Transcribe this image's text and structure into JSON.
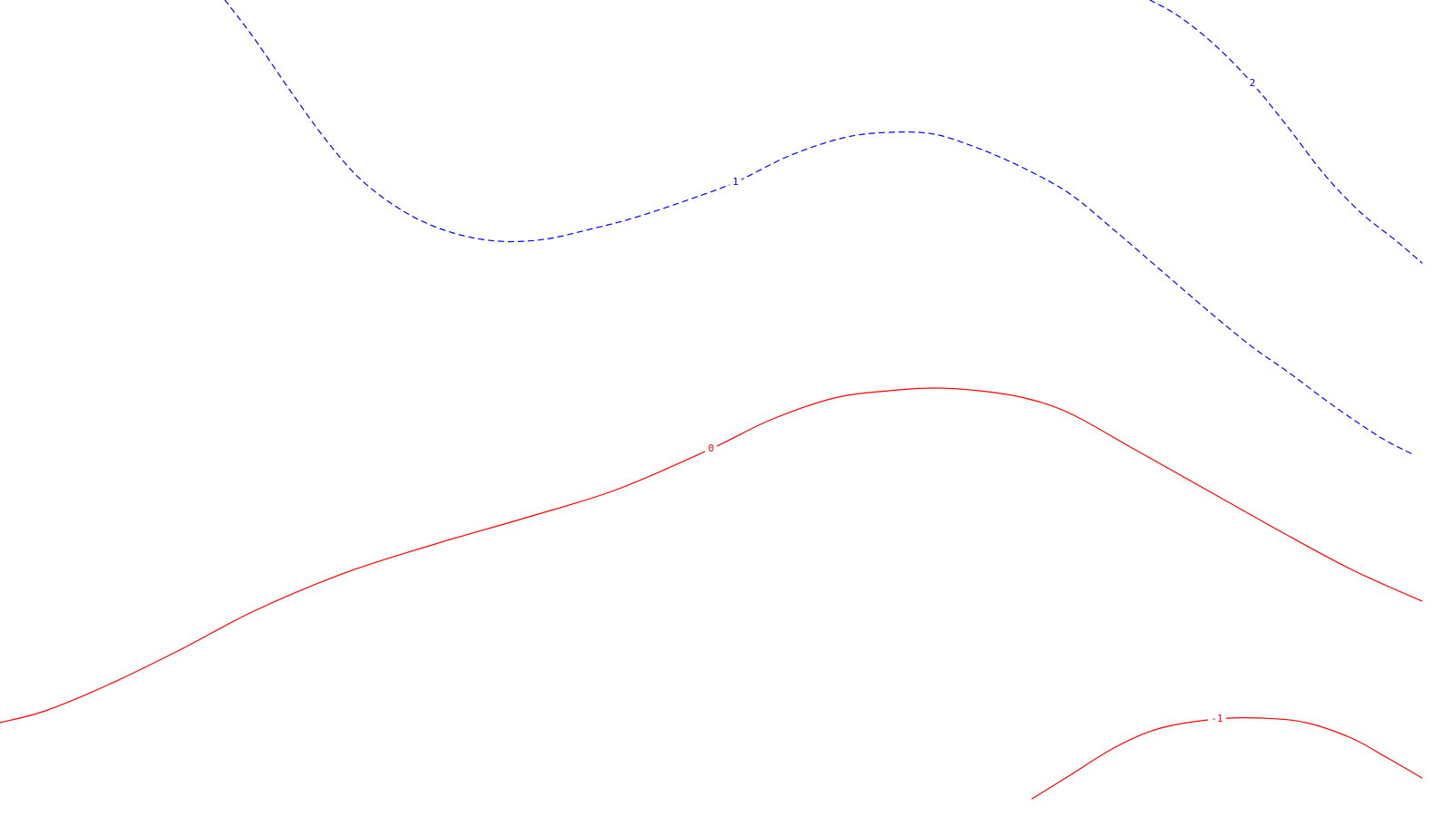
{
  "chart_data": {
    "type": "contour",
    "title": "",
    "xlabel": "",
    "ylabel": "",
    "grid": false,
    "legend": "none",
    "colors": {
      "positive": "#0000ff",
      "zero": "#ff0000",
      "negative": "#ff0000",
      "background": "#ffffff"
    },
    "series": [
      {
        "level": "2",
        "style": "dashed",
        "color": "#0000ff",
        "x": [
          1268,
          1300,
          1340,
          1381,
          1420,
          1460,
          1500,
          1540,
          1568
        ],
        "y": [
          0,
          18,
          50,
          92,
          140,
          192,
          234,
          266,
          290
        ],
        "label_index": 3
      },
      {
        "level": "1",
        "style": "dashed",
        "color": "#0000ff",
        "x": [
          248,
          280,
          320,
          360,
          400,
          450,
          500,
          550,
          600,
          650,
          700,
          760,
          811,
          870,
          930,
          980,
          1030,
          1080,
          1130,
          1180,
          1230,
          1280,
          1330,
          1380,
          1420,
          1460,
          1500,
          1530,
          1560
        ],
        "y": [
          0,
          42,
          100,
          155,
          200,
          236,
          257,
          266,
          264,
          253,
          240,
          220,
          201,
          172,
          152,
          146,
          148,
          164,
          186,
          214,
          255,
          298,
          341,
          382,
          410,
          440,
          468,
          487,
          502
        ],
        "label_index": 12
      },
      {
        "level": "0",
        "style": "solid",
        "color": "#ff0000",
        "x": [
          0,
          50,
          120,
          200,
          280,
          380,
          480,
          580,
          680,
          784,
          850,
          920,
          980,
          1030,
          1080,
          1130,
          1180,
          1250,
          1330,
          1410,
          1490,
          1568
        ],
        "y": [
          797,
          784,
          755,
          716,
          674,
          632,
          600,
          571,
          540,
          495,
          463,
          439,
          431,
          428,
          431,
          439,
          456,
          495,
          540,
          585,
          628,
          663
        ],
        "label_index": 9
      },
      {
        "level": "-1",
        "style": "solid",
        "color": "#ff0000",
        "x": [
          1138,
          1180,
          1230,
          1280,
          1342,
          1390,
          1440,
          1490,
          1530,
          1568
        ],
        "y": [
          881,
          855,
          824,
          803,
          793,
          792,
          797,
          814,
          836,
          858
        ],
        "label_index": 4
      }
    ]
  }
}
